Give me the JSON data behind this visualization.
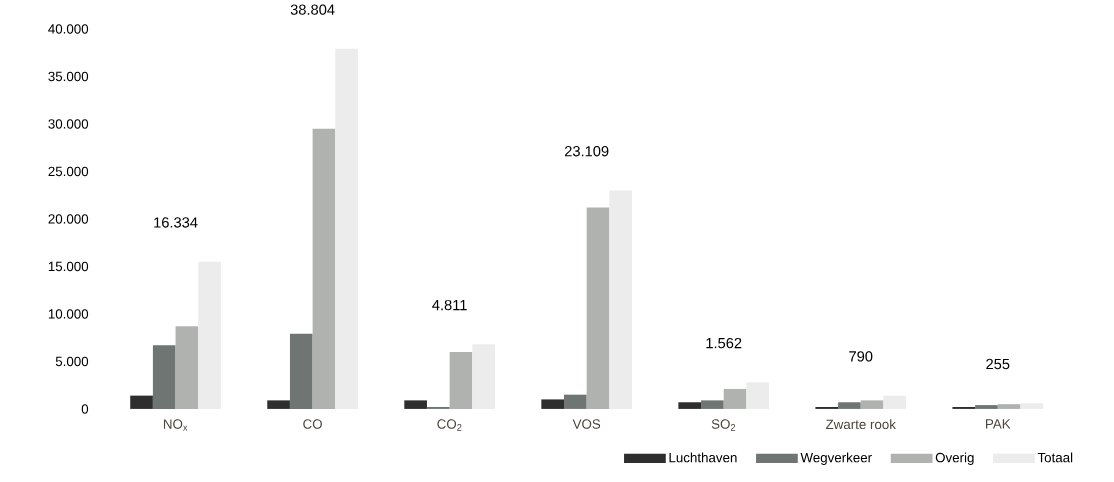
{
  "chart_data": {
    "type": "bar",
    "categories": [
      "NO$_{x}$",
      "CO",
      "CO$_{2}$",
      "VOS",
      "SO$_{2}$",
      "Zwarte rook",
      "PAK"
    ],
    "series": [
      {
        "name": "Luchthaven",
        "color": "#2e2e2e",
        "values": [
          1400,
          900,
          900,
          1000,
          700,
          200,
          200
        ]
      },
      {
        "name": "Wegverkeer",
        "color": "#6f7572",
        "values": [
          6700,
          7900,
          200,
          1500,
          900,
          700,
          400
        ]
      },
      {
        "name": "Overig",
        "color": "#b0b2b0",
        "values": [
          8700,
          29500,
          6000,
          21200,
          2100,
          900,
          500
        ]
      },
      {
        "name": "Totaal",
        "color": "#ececec",
        "values": [
          15500,
          37900,
          6800,
          23000,
          2800,
          1400,
          600
        ]
      }
    ],
    "ylim": [
      0,
      40000
    ],
    "yticks": [
      {
        "value": 0,
        "label": "0"
      },
      {
        "value": 5000,
        "label": "5.000"
      },
      {
        "value": 10000,
        "label": "10.000"
      },
      {
        "value": 15000,
        "label": "15.000"
      },
      {
        "value": 20000,
        "label": "20.000"
      },
      {
        "value": 25000,
        "label": "25.000"
      },
      {
        "value": 30000,
        "label": "30.000"
      },
      {
        "value": 35000,
        "label": "35.000"
      },
      {
        "value": 40000,
        "label": "40.000"
      }
    ],
    "legend": "bottom right",
    "annotations": [
      "16.334",
      "38.804",
      "4.811",
      "23.109",
      "1.562",
      "790",
      "255"
    ]
  }
}
